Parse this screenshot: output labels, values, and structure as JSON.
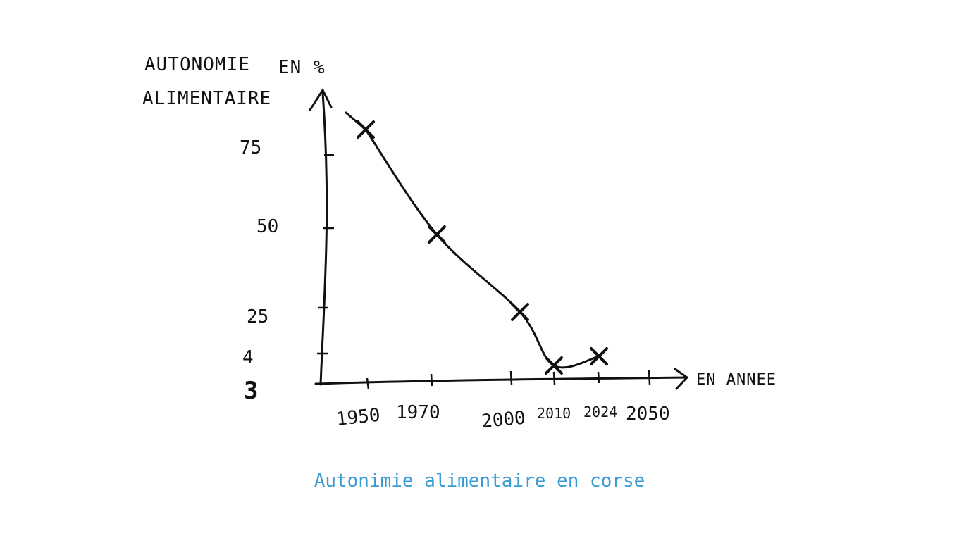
{
  "caption": "Autonimie alimentaire en corse",
  "chart_data": {
    "type": "line",
    "title": "",
    "ylabel_line1": "AUTONOMIE",
    "ylabel_unit": "EN %",
    "ylabel_line2": "ALIMENTAIRE",
    "xlabel": "EN ANNEE",
    "yticks": [
      "75",
      "50",
      "25",
      "4",
      "3"
    ],
    "xticks": [
      "1950",
      "1970",
      "2000",
      "2010",
      "2024",
      "2050"
    ],
    "x": [
      1950,
      1970,
      2000,
      2010,
      2024
    ],
    "y": [
      80,
      48,
      25,
      4,
      7
    ],
    "marker": "x",
    "grid": false,
    "line_color": "#111111",
    "caption_color": "#3a9bd5"
  }
}
